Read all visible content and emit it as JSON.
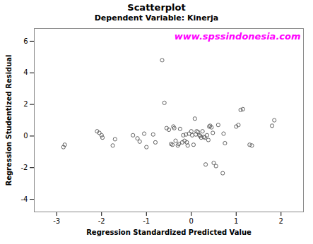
{
  "chart_data": {
    "type": "scatter",
    "title": "Scatterplot",
    "subtitle": "Dependent Variable: Kinerja",
    "xlabel": "Regression Standardized Predicted Value",
    "ylabel": "Regression Studentized Residual",
    "annotations": [
      {
        "text": "www.spssindonesia.com",
        "color": "#FF00FF"
      }
    ],
    "color": "#555555",
    "marker": "hollow circle",
    "grid": false,
    "xlim": [
      -3.5,
      2.5
    ],
    "ylim": [
      -4.8,
      6.8
    ],
    "xticks": [
      -3,
      -2,
      -1,
      0,
      1,
      2
    ],
    "yticks": [
      -4,
      -2,
      0,
      2,
      4,
      6
    ],
    "x": [
      -2.85,
      -2.82,
      -2.1,
      -2.05,
      -2.0,
      -1.98,
      -1.75,
      -1.7,
      -1.3,
      -1.2,
      -1.15,
      -1.05,
      -1.0,
      -0.85,
      -0.8,
      -0.65,
      -0.6,
      -0.55,
      -0.5,
      -0.45,
      -0.42,
      -0.4,
      -0.38,
      -0.35,
      -0.3,
      -0.28,
      -0.25,
      -0.2,
      -0.18,
      -0.15,
      -0.12,
      -0.1,
      -0.08,
      -0.05,
      0.0,
      0.02,
      0.05,
      0.08,
      0.1,
      0.12,
      0.15,
      0.18,
      0.2,
      0.22,
      0.25,
      0.28,
      0.3,
      0.32,
      0.35,
      0.38,
      0.4,
      0.42,
      0.45,
      0.48,
      0.5,
      0.55,
      0.6,
      0.7,
      0.72,
      0.75,
      1.0,
      1.05,
      1.1,
      1.15,
      1.3,
      1.35,
      1.8,
      1.85
    ],
    "values": [
      -0.7,
      -0.55,
      0.3,
      0.2,
      0.05,
      -0.1,
      -0.6,
      -0.2,
      0.05,
      -0.15,
      -0.35,
      0.15,
      -0.7,
      0.1,
      -0.4,
      4.8,
      2.1,
      0.5,
      0.4,
      -0.5,
      -0.55,
      0.6,
      0.5,
      -0.3,
      -0.6,
      -0.5,
      0.45,
      -0.4,
      0.05,
      -0.3,
      0.1,
      -0.4,
      -0.6,
      0.15,
      0.3,
      0.05,
      -0.55,
      1.1,
      0.1,
      0.3,
      0.25,
      0.05,
      0.0,
      -0.1,
      0.3,
      -0.05,
      -0.1,
      -1.8,
      0.05,
      -0.25,
      0.6,
      0.65,
      0.55,
      0.2,
      -1.7,
      -1.9,
      0.7,
      -2.35,
      0.15,
      -0.45,
      0.6,
      0.7,
      1.65,
      1.7,
      -0.55,
      -0.6,
      0.65,
      1.0
    ]
  }
}
